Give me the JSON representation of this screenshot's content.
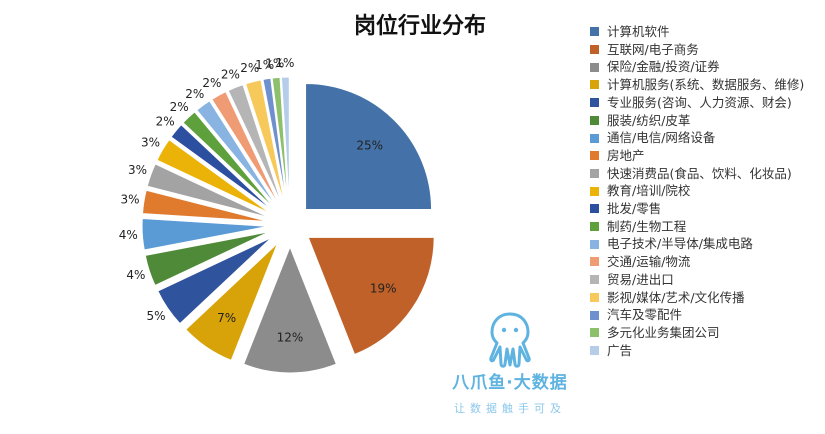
{
  "chart_data": {
    "type": "pie",
    "title": "岗位行业分布",
    "legend_position": "right",
    "slices": [
      {
        "label": "计算机软件",
        "value": 25,
        "display": "25%",
        "color": "#4472a8"
      },
      {
        "label": "互联网/电子商务",
        "value": 19,
        "display": "19%",
        "color": "#c0612a"
      },
      {
        "label": "保险/金融/投资/证券",
        "value": 12,
        "display": "12%",
        "color": "#8c8c8c"
      },
      {
        "label": "计算机服务(系统、数据服务、维修)",
        "value": 7,
        "display": "7%",
        "color": "#d8a308"
      },
      {
        "label": "专业服务(咨询、人力资源、财会)",
        "value": 5,
        "display": "5%",
        "color": "#2f539c"
      },
      {
        "label": "服装/纺织/皮革",
        "value": 4,
        "display": "4%",
        "color": "#4e8a37"
      },
      {
        "label": "通信/电信/网络设备",
        "value": 4,
        "display": "4%",
        "color": "#5a9bd5"
      },
      {
        "label": "房地产",
        "value": 3,
        "display": "3%",
        "color": "#e07b2e"
      },
      {
        "label": "快速消费品(食品、饮料、化妆品)",
        "value": 3,
        "display": "3%",
        "color": "#a3a3a3"
      },
      {
        "label": "教育/培训/院校",
        "value": 3,
        "display": "3%",
        "color": "#ebb308"
      },
      {
        "label": "批发/零售",
        "value": 2,
        "display": "2%",
        "color": "#2d4fa0"
      },
      {
        "label": "制药/生物工程",
        "value": 2,
        "display": "2%",
        "color": "#5ea03b"
      },
      {
        "label": "电子技术/半导体/集成电路",
        "value": 2,
        "display": "2%",
        "color": "#89b3e0"
      },
      {
        "label": "交通/运输/物流",
        "value": 2,
        "display": "2%",
        "color": "#ef9b74"
      },
      {
        "label": "贸易/进出口",
        "value": 2,
        "display": "2%",
        "color": "#b5b5b5"
      },
      {
        "label": "影视/媒体/艺术/文化传播",
        "value": 2,
        "display": "2%",
        "color": "#f7c95b"
      },
      {
        "label": "汽车及零配件",
        "value": 1,
        "display": "1%",
        "color": "#6f90cf"
      },
      {
        "label": "多元化业务集团公司",
        "value": 1,
        "display": "1%",
        "color": "#8cc06a"
      },
      {
        "label": "广告",
        "value": 1,
        "display": "1%",
        "color": "#b5cde9"
      }
    ]
  },
  "watermark": {
    "title": "八爪鱼·大数据",
    "subtitle": "让数据触手可及",
    "color": "#5fb3e0"
  }
}
